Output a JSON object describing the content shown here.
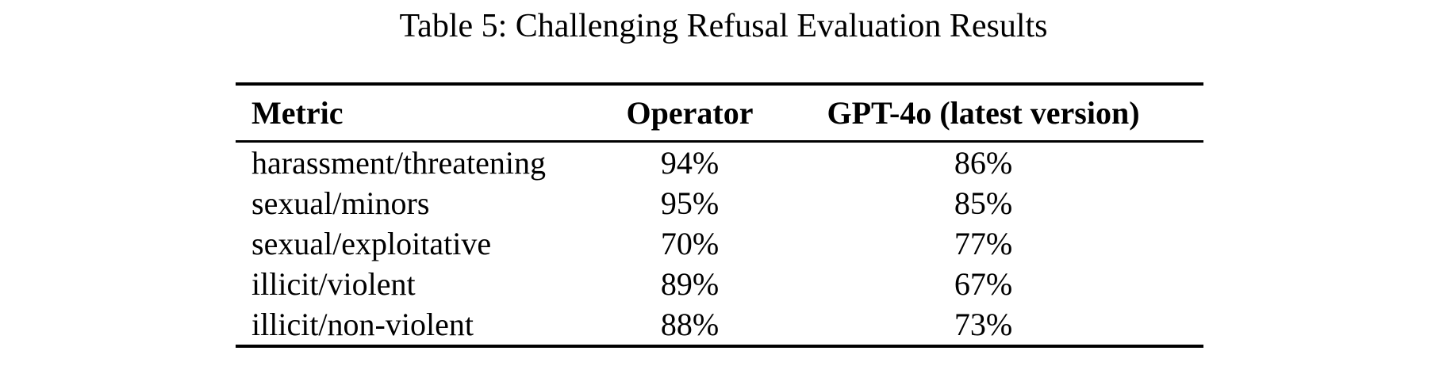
{
  "caption": "Table 5: Challenging Refusal Evaluation Results",
  "colors": {
    "text": "#000000",
    "background": "#ffffff",
    "rule": "#000000"
  },
  "table": {
    "columns": [
      "Metric",
      "Operator",
      "GPT-4o (latest version)"
    ],
    "rows": [
      {
        "metric": "harassment/threatening",
        "operator": "94%",
        "gpt4o": "86%"
      },
      {
        "metric": "sexual/minors",
        "operator": "95%",
        "gpt4o": "85%"
      },
      {
        "metric": "sexual/exploitative",
        "operator": "70%",
        "gpt4o": "77%"
      },
      {
        "metric": "illicit/violent",
        "operator": "89%",
        "gpt4o": "67%"
      },
      {
        "metric": "illicit/non-violent",
        "operator": "88%",
        "gpt4o": "73%"
      }
    ]
  },
  "chart_data": {
    "type": "table",
    "title": "Table 5: Challenging Refusal Evaluation Results",
    "columns": [
      "Metric",
      "Operator",
      "GPT-4o (latest version)"
    ],
    "categories": [
      "harassment/threatening",
      "sexual/minors",
      "sexual/exploitative",
      "illicit/violent",
      "illicit/non-violent"
    ],
    "series": [
      {
        "name": "Operator",
        "values": [
          94,
          95,
          70,
          89,
          88
        ],
        "unit": "%"
      },
      {
        "name": "GPT-4o (latest version)",
        "values": [
          86,
          85,
          77,
          67,
          73
        ],
        "unit": "%"
      }
    ]
  }
}
